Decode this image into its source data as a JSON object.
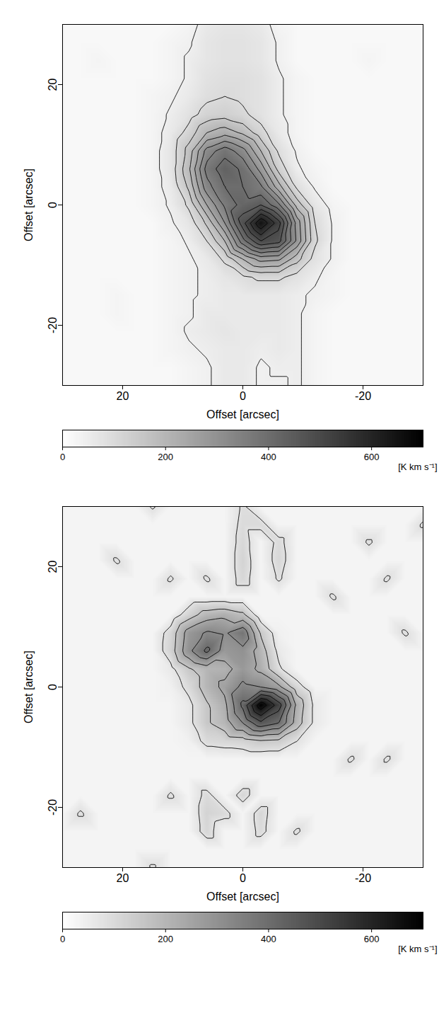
{
  "chart_data": [
    {
      "type": "heatmap",
      "x_label": "Offset [arcsec]",
      "y_label": "Offset [arcsec]",
      "xlim": [
        30,
        -30
      ],
      "ylim": [
        -30,
        30
      ],
      "xticks": [
        20,
        0,
        -20
      ],
      "yticks": [
        -20,
        0,
        20
      ],
      "grid_x": [
        30,
        27,
        24,
        21,
        18,
        15,
        12,
        9,
        6,
        3,
        0,
        -3,
        -6,
        -9,
        -12,
        -15,
        -18,
        -21,
        -24,
        -27,
        -30
      ],
      "grid_y": [
        30,
        27,
        24,
        21,
        18,
        15,
        12,
        9,
        6,
        3,
        0,
        -3,
        -6,
        -9,
        -12,
        -15,
        -18,
        -21,
        -24,
        -27,
        -30
      ],
      "cells": [
        [
          20,
          20,
          20,
          20,
          20,
          20,
          20,
          30,
          60,
          70,
          70,
          60,
          30,
          20,
          20,
          20,
          20,
          20,
          20,
          20,
          20
        ],
        [
          20,
          20,
          20,
          20,
          20,
          20,
          30,
          40,
          70,
          80,
          80,
          70,
          40,
          20,
          20,
          20,
          20,
          20,
          20,
          20,
          20
        ],
        [
          20,
          20,
          30,
          20,
          20,
          20,
          30,
          50,
          70,
          80,
          80,
          70,
          40,
          20,
          20,
          20,
          20,
          30,
          20,
          20,
          20
        ],
        [
          20,
          20,
          20,
          20,
          20,
          20,
          30,
          50,
          80,
          90,
          90,
          80,
          50,
          30,
          20,
          20,
          20,
          20,
          20,
          20,
          20
        ],
        [
          20,
          20,
          20,
          20,
          20,
          30,
          40,
          60,
          90,
          100,
          90,
          80,
          50,
          30,
          20,
          20,
          20,
          20,
          20,
          20,
          20
        ],
        [
          20,
          20,
          20,
          20,
          20,
          30,
          50,
          80,
          120,
          130,
          110,
          80,
          50,
          30,
          20,
          20,
          20,
          20,
          20,
          20,
          20
        ],
        [
          20,
          20,
          20,
          20,
          20,
          30,
          60,
          120,
          200,
          230,
          190,
          120,
          60,
          30,
          20,
          20,
          20,
          20,
          20,
          20,
          20
        ],
        [
          20,
          20,
          20,
          20,
          20,
          30,
          70,
          170,
          320,
          380,
          320,
          200,
          90,
          40,
          20,
          20,
          20,
          20,
          20,
          20,
          20
        ],
        [
          20,
          20,
          20,
          20,
          20,
          30,
          70,
          190,
          370,
          430,
          390,
          280,
          130,
          50,
          30,
          20,
          20,
          20,
          20,
          20,
          20
        ],
        [
          20,
          20,
          20,
          20,
          20,
          30,
          60,
          160,
          330,
          400,
          400,
          360,
          220,
          90,
          40,
          20,
          20,
          20,
          20,
          20,
          20
        ],
        [
          20,
          20,
          20,
          20,
          20,
          30,
          50,
          110,
          250,
          360,
          420,
          450,
          360,
          180,
          70,
          30,
          20,
          20,
          20,
          20,
          20
        ],
        [
          20,
          20,
          20,
          20,
          20,
          20,
          40,
          70,
          160,
          300,
          480,
          650,
          520,
          280,
          100,
          40,
          20,
          20,
          20,
          20,
          20
        ],
        [
          20,
          20,
          20,
          20,
          20,
          20,
          30,
          50,
          100,
          200,
          380,
          500,
          470,
          290,
          110,
          40,
          20,
          20,
          20,
          20,
          20
        ],
        [
          20,
          20,
          20,
          20,
          20,
          20,
          30,
          40,
          60,
          110,
          200,
          270,
          260,
          170,
          80,
          40,
          20,
          20,
          20,
          20,
          20
        ],
        [
          20,
          20,
          20,
          20,
          20,
          20,
          30,
          40,
          50,
          70,
          90,
          110,
          110,
          80,
          50,
          30,
          20,
          20,
          20,
          20,
          20
        ],
        [
          20,
          20,
          20,
          30,
          20,
          20,
          30,
          40,
          50,
          60,
          60,
          60,
          60,
          50,
          40,
          30,
          20,
          20,
          20,
          20,
          20
        ],
        [
          20,
          20,
          20,
          30,
          20,
          20,
          30,
          40,
          60,
          60,
          60,
          60,
          60,
          50,
          30,
          20,
          20,
          20,
          20,
          20,
          20
        ],
        [
          20,
          20,
          20,
          20,
          20,
          20,
          30,
          50,
          60,
          70,
          60,
          60,
          60,
          50,
          30,
          20,
          20,
          20,
          20,
          20,
          20
        ],
        [
          20,
          20,
          20,
          20,
          20,
          20,
          30,
          40,
          50,
          60,
          60,
          50,
          60,
          50,
          30,
          20,
          20,
          20,
          20,
          20,
          20
        ],
        [
          20,
          20,
          20,
          20,
          20,
          20,
          20,
          30,
          40,
          60,
          60,
          40,
          50,
          50,
          30,
          20,
          20,
          20,
          20,
          20,
          20
        ],
        [
          20,
          20,
          20,
          20,
          20,
          20,
          20,
          30,
          40,
          60,
          60,
          40,
          40,
          50,
          30,
          20,
          20,
          20,
          20,
          20,
          20
        ]
      ],
      "contour_levels": [
        45,
        100,
        150,
        200,
        250,
        300,
        350,
        400,
        450,
        500,
        550,
        600
      ],
      "colorbar_range": [
        0,
        700
      ],
      "colorbar_ticks": [
        0,
        200,
        400,
        600
      ],
      "colorbar_label": "[K km s⁻¹]"
    },
    {
      "type": "heatmap",
      "x_label": "Offset [arcsec]",
      "y_label": "Offset [arcsec]",
      "xlim": [
        30,
        -30
      ],
      "ylim": [
        -30,
        30
      ],
      "xticks": [
        20,
        0,
        -20
      ],
      "yticks": [
        -20,
        0,
        20
      ],
      "grid_x": [
        30,
        27,
        24,
        21,
        18,
        15,
        12,
        9,
        6,
        3,
        0,
        -3,
        -6,
        -9,
        -12,
        -15,
        -18,
        -21,
        -24,
        -27,
        -30
      ],
      "grid_y": [
        30,
        27,
        24,
        21,
        18,
        15,
        12,
        9,
        6,
        3,
        0,
        -3,
        -6,
        -9,
        -12,
        -15,
        -18,
        -21,
        -24,
        -27,
        -30
      ],
      "cells": [
        [
          30,
          30,
          30,
          30,
          30,
          90,
          30,
          30,
          30,
          30,
          90,
          30,
          30,
          30,
          30,
          30,
          30,
          30,
          30,
          30,
          30
        ],
        [
          30,
          30,
          30,
          30,
          30,
          30,
          30,
          30,
          30,
          30,
          100,
          100,
          30,
          30,
          30,
          30,
          30,
          30,
          30,
          30,
          90
        ],
        [
          30,
          30,
          30,
          30,
          30,
          30,
          30,
          30,
          30,
          30,
          110,
          30,
          100,
          30,
          30,
          30,
          30,
          90,
          30,
          30,
          30
        ],
        [
          30,
          30,
          30,
          90,
          30,
          30,
          30,
          30,
          30,
          30,
          120,
          30,
          110,
          30,
          30,
          30,
          30,
          30,
          30,
          30,
          30
        ],
        [
          30,
          30,
          30,
          30,
          30,
          30,
          90,
          30,
          90,
          30,
          110,
          30,
          90,
          30,
          30,
          30,
          30,
          30,
          90,
          30,
          30
        ],
        [
          30,
          30,
          30,
          30,
          30,
          30,
          30,
          30,
          30,
          30,
          30,
          30,
          30,
          30,
          30,
          90,
          30,
          30,
          30,
          30,
          30
        ],
        [
          30,
          30,
          30,
          30,
          30,
          30,
          30,
          120,
          200,
          220,
          180,
          30,
          30,
          30,
          30,
          30,
          30,
          30,
          30,
          30,
          30
        ],
        [
          30,
          30,
          30,
          30,
          30,
          30,
          110,
          280,
          330,
          310,
          380,
          150,
          40,
          30,
          30,
          30,
          30,
          30,
          30,
          90,
          30
        ],
        [
          30,
          30,
          30,
          30,
          30,
          30,
          120,
          300,
          420,
          280,
          300,
          200,
          60,
          30,
          30,
          30,
          30,
          30,
          30,
          30,
          30
        ],
        [
          30,
          30,
          30,
          30,
          30,
          30,
          60,
          150,
          200,
          210,
          280,
          220,
          90,
          30,
          30,
          30,
          30,
          30,
          30,
          30,
          30
        ],
        [
          30,
          30,
          30,
          30,
          30,
          30,
          40,
          100,
          200,
          260,
          340,
          320,
          260,
          110,
          30,
          30,
          30,
          30,
          30,
          30,
          30
        ],
        [
          30,
          30,
          30,
          30,
          30,
          30,
          30,
          60,
          150,
          220,
          420,
          700,
          520,
          220,
          60,
          30,
          30,
          30,
          30,
          30,
          30
        ],
        [
          30,
          30,
          30,
          30,
          30,
          30,
          30,
          60,
          150,
          200,
          320,
          460,
          400,
          200,
          60,
          30,
          30,
          30,
          30,
          30,
          30
        ],
        [
          30,
          30,
          30,
          30,
          30,
          30,
          30,
          40,
          100,
          110,
          120,
          150,
          140,
          80,
          30,
          30,
          30,
          30,
          30,
          30,
          30
        ],
        [
          30,
          30,
          30,
          30,
          30,
          30,
          30,
          30,
          30,
          30,
          30,
          30,
          30,
          30,
          30,
          30,
          90,
          30,
          90,
          30,
          30
        ],
        [
          30,
          30,
          30,
          30,
          30,
          30,
          30,
          30,
          30,
          30,
          30,
          30,
          30,
          30,
          30,
          30,
          30,
          30,
          30,
          30,
          30
        ],
        [
          30,
          30,
          30,
          30,
          30,
          30,
          90,
          30,
          100,
          30,
          110,
          30,
          30,
          30,
          30,
          30,
          30,
          30,
          30,
          30,
          30
        ],
        [
          30,
          90,
          30,
          30,
          30,
          30,
          30,
          30,
          120,
          100,
          30,
          110,
          30,
          30,
          30,
          30,
          30,
          30,
          30,
          30,
          30
        ],
        [
          30,
          30,
          30,
          30,
          30,
          30,
          30,
          30,
          110,
          30,
          30,
          100,
          30,
          90,
          30,
          30,
          30,
          30,
          30,
          30,
          30
        ],
        [
          30,
          30,
          30,
          30,
          30,
          30,
          30,
          30,
          30,
          30,
          30,
          30,
          30,
          30,
          30,
          30,
          30,
          30,
          30,
          30,
          30
        ],
        [
          30,
          30,
          30,
          30,
          30,
          90,
          30,
          30,
          30,
          30,
          30,
          30,
          30,
          30,
          30,
          30,
          30,
          30,
          30,
          30,
          30
        ]
      ],
      "contour_levels": [
        80,
        160,
        240,
        320,
        400,
        480,
        560,
        640
      ],
      "colorbar_range": [
        0,
        700
      ],
      "colorbar_ticks": [
        0,
        200,
        400,
        600
      ],
      "colorbar_label": "[K km s⁻¹]"
    }
  ]
}
